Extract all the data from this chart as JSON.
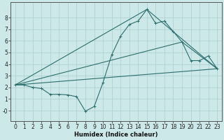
{
  "xlabel": "Humidex (Indice chaleur)",
  "bg_color": "#cce8e8",
  "line_color": "#2d6e6e",
  "grid_color": "#aacece",
  "xlim": [
    -0.5,
    23.5
  ],
  "ylim": [
    -0.9,
    9.3
  ],
  "xticks": [
    0,
    1,
    2,
    3,
    4,
    5,
    6,
    7,
    8,
    9,
    10,
    11,
    12,
    13,
    14,
    15,
    16,
    17,
    18,
    19,
    20,
    21,
    22,
    23
  ],
  "yticks": [
    0,
    1,
    2,
    3,
    4,
    5,
    6,
    7,
    8
  ],
  "ytick_labels": [
    "-0",
    "1",
    "2",
    "3",
    "4",
    "5",
    "6",
    "7",
    "8"
  ],
  "line1_x": [
    0,
    1,
    2,
    3,
    4,
    5,
    6,
    7,
    8,
    9,
    10,
    11,
    12,
    13,
    14,
    15,
    16,
    17,
    18,
    19,
    20,
    21,
    22,
    23
  ],
  "line1_y": [
    2.2,
    2.2,
    2.0,
    1.9,
    1.4,
    1.4,
    1.35,
    1.2,
    -0.05,
    0.35,
    2.4,
    4.8,
    6.4,
    7.4,
    7.7,
    8.7,
    7.5,
    7.7,
    6.8,
    5.9,
    4.3,
    4.3,
    4.7,
    3.6
  ],
  "line2_x": [
    0,
    15,
    23
  ],
  "line2_y": [
    2.2,
    8.7,
    3.6
  ],
  "line3_x": [
    0,
    19,
    23
  ],
  "line3_y": [
    2.2,
    5.9,
    3.6
  ],
  "line4_x": [
    0,
    23
  ],
  "line4_y": [
    2.2,
    3.6
  ]
}
